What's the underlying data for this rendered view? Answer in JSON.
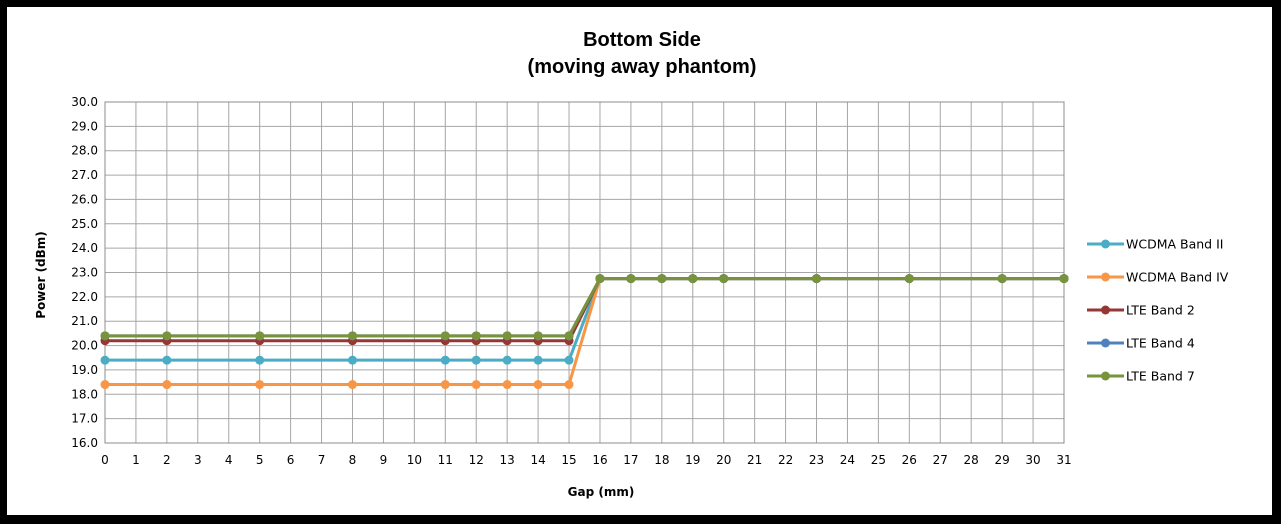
{
  "chart_data": {
    "type": "line",
    "title": "Bottom Side",
    "subtitle": "(moving away phantom)",
    "xlabel": "Gap (mm)",
    "ylabel": "Power (dBm)",
    "ylim": [
      16.0,
      30.0
    ],
    "y_ticks": [
      "16.0",
      "17.0",
      "18.0",
      "19.0",
      "20.0",
      "21.0",
      "22.0",
      "23.0",
      "24.0",
      "25.0",
      "26.0",
      "27.0",
      "28.0",
      "29.0",
      "30.0"
    ],
    "xlim": [
      0,
      31
    ],
    "x_ticks": [
      "0",
      "1",
      "2",
      "3",
      "4",
      "5",
      "6",
      "7",
      "8",
      "9",
      "10",
      "11",
      "12",
      "13",
      "14",
      "15",
      "16",
      "17",
      "18",
      "19",
      "20",
      "21",
      "22",
      "23",
      "24",
      "25",
      "26",
      "27",
      "28",
      "29",
      "30",
      "31"
    ],
    "grid": true,
    "legend_position": "right",
    "x": [
      0,
      2,
      5,
      8,
      11,
      12,
      13,
      14,
      15,
      16,
      17,
      18,
      19,
      20,
      23,
      26,
      29,
      31
    ],
    "series": [
      {
        "name": "WCDMA Band II",
        "color": "#4BACC6",
        "values": [
          19.4,
          19.4,
          19.4,
          19.4,
          19.4,
          19.4,
          19.4,
          19.4,
          19.4,
          22.75,
          22.75,
          22.75,
          22.75,
          22.75,
          22.75,
          22.75,
          22.75,
          22.75
        ]
      },
      {
        "name": "WCDMA Band IV",
        "color": "#F79646",
        "values": [
          18.4,
          18.4,
          18.4,
          18.4,
          18.4,
          18.4,
          18.4,
          18.4,
          18.4,
          22.75,
          22.75,
          22.75,
          22.75,
          22.75,
          22.75,
          22.75,
          22.75,
          22.75
        ]
      },
      {
        "name": "LTE Band 2",
        "color": "#953735",
        "values": [
          20.2,
          20.2,
          20.2,
          20.2,
          20.2,
          20.2,
          20.2,
          20.2,
          20.2,
          22.75,
          22.75,
          22.75,
          22.75,
          22.75,
          22.75,
          22.75,
          22.75,
          22.75
        ]
      },
      {
        "name": "LTE Band 4",
        "color": "#4F81BD",
        "values": [
          20.4,
          20.4,
          20.4,
          20.4,
          20.4,
          20.4,
          20.4,
          20.4,
          20.4,
          22.75,
          22.75,
          22.75,
          22.75,
          22.75,
          22.75,
          22.75,
          22.75,
          22.75
        ]
      },
      {
        "name": "LTE Band 7",
        "color": "#77933C",
        "values": [
          20.4,
          20.4,
          20.4,
          20.4,
          20.4,
          20.4,
          20.4,
          20.4,
          20.4,
          22.75,
          22.75,
          22.75,
          22.75,
          22.75,
          22.75,
          22.75,
          22.75,
          22.75
        ]
      }
    ]
  }
}
